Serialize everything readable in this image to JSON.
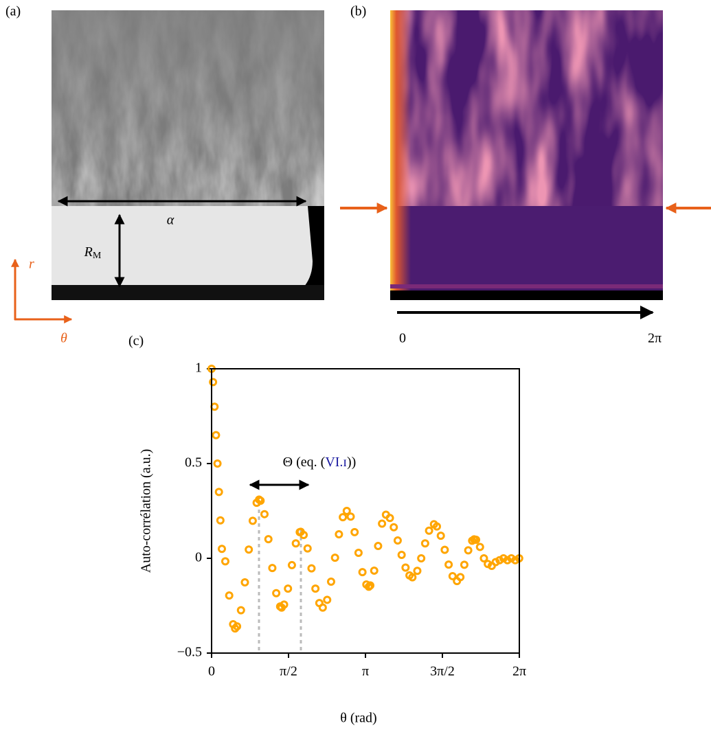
{
  "panel_a": {
    "label": "(a)",
    "width_symbol": "α",
    "height_symbol": "R",
    "height_subscript": "M",
    "axis_r": "r",
    "axis_theta": "θ"
  },
  "panel_b": {
    "label": "(b)",
    "x_start": "0",
    "x_end": "2π"
  },
  "chart_data": {
    "type": "scatter",
    "label": "(c)",
    "xlabel": "θ (rad)",
    "ylabel": "Auto-corrélation (a.u.)",
    "annotation": "Θ (eq. (",
    "annotation_ref": "VI.ɪ",
    "annotation_end": "))",
    "color": "#ffa500",
    "xlim": [
      0,
      6.2832
    ],
    "ylim": [
      -0.5,
      1
    ],
    "xticks": [
      0,
      {
        "value": 1.5708,
        "label": "π/2"
      },
      {
        "value": 3.1416,
        "label": "π"
      },
      {
        "value": 4.7124,
        "label": "3π/2"
      },
      {
        "value": 6.2832,
        "label": "2π"
      }
    ],
    "yticks": [
      {
        "value": -0.5,
        "label": "−0.5"
      },
      0,
      0.5,
      1
    ],
    "x": [
      0,
      0.03,
      0.06,
      0.09,
      0.12,
      0.15,
      0.18,
      0.21,
      0.28,
      0.36,
      0.44,
      0.48,
      0.52,
      0.6,
      0.68,
      0.76,
      0.84,
      0.92,
      0.97,
      1.0,
      1.08,
      1.16,
      1.24,
      1.32,
      1.4,
      1.43,
      1.48,
      1.56,
      1.64,
      1.72,
      1.8,
      1.82,
      1.88,
      1.96,
      2.04,
      2.12,
      2.2,
      2.27,
      2.36,
      2.44,
      2.52,
      2.6,
      2.68,
      2.76,
      2.84,
      2.92,
      3.0,
      3.08,
      3.16,
      3.21,
      3.24,
      3.32,
      3.4,
      3.48,
      3.56,
      3.64,
      3.72,
      3.8,
      3.88,
      3.96,
      4.04,
      4.1,
      4.2,
      4.28,
      4.36,
      4.44,
      4.54,
      4.6,
      4.68,
      4.76,
      4.84,
      4.92,
      5.01,
      5.08,
      5.16,
      5.24,
      5.32,
      5.36,
      5.4,
      5.48,
      5.56,
      5.64,
      5.72,
      5.8,
      5.88,
      5.96,
      6.04,
      6.12,
      6.2,
      6.28
    ],
    "values": [
      1,
      0.93,
      0.8,
      0.65,
      0.5,
      0.35,
      0.2,
      0.05,
      -0.016,
      -0.196,
      -0.348,
      -0.37,
      -0.359,
      -0.274,
      -0.127,
      0.046,
      0.198,
      0.293,
      0.31,
      0.304,
      0.233,
      0.101,
      -0.051,
      -0.184,
      -0.254,
      -0.26,
      -0.244,
      -0.16,
      -0.036,
      0.079,
      0.138,
      0.14,
      0.123,
      0.052,
      -0.053,
      -0.16,
      -0.236,
      -0.26,
      -0.219,
      -0.123,
      0.003,
      0.127,
      0.217,
      0.25,
      0.22,
      0.138,
      0.029,
      -0.073,
      -0.138,
      -0.15,
      -0.143,
      -0.065,
      0.065,
      0.183,
      0.23,
      0.213,
      0.164,
      0.094,
      0.018,
      -0.049,
      -0.09,
      -0.1,
      -0.066,
      0.0,
      0.079,
      0.146,
      0.18,
      0.168,
      0.119,
      0.045,
      -0.033,
      -0.094,
      -0.12,
      -0.099,
      -0.034,
      0.042,
      0.093,
      0.1,
      0.098,
      0.06,
      0.0,
      -0.03,
      -0.04,
      -0.02,
      -0.01,
      0.0,
      -0.01,
      0.0,
      -0.01,
      0.0
    ]
  }
}
